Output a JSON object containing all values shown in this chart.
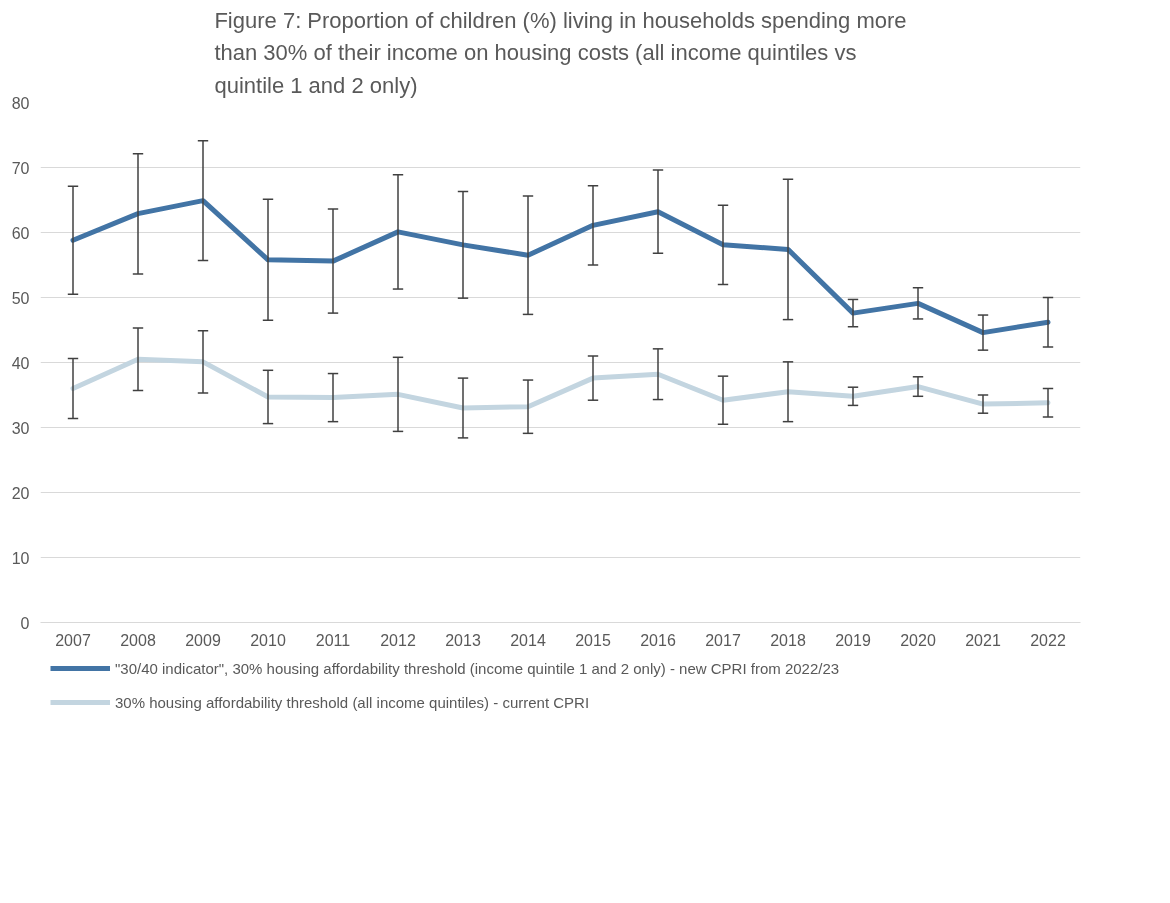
{
  "chart_data": {
    "type": "line",
    "title": "Figure 7: Proportion of children (%) living in households spending more than 30% of their income on housing costs (all income quintiles vs quintile 1 and 2 only)",
    "categories": [
      "2007",
      "2008",
      "2009",
      "2010",
      "2011",
      "2012",
      "2013",
      "2014",
      "2015",
      "2016",
      "2017",
      "2018",
      "2019",
      "2020",
      "2021",
      "2022"
    ],
    "series": [
      {
        "name": "\"30/40 indicator\", 30% housing affordability threshold (income quintile 1 and 2 only) - new CPRI from 2022/23",
        "color": "#4274a5",
        "values": [
          58.8,
          62.9,
          64.9,
          55.8,
          55.6,
          60.1,
          58.1,
          56.5,
          61.1,
          63.2,
          58.1,
          57.4,
          47.6,
          49.1,
          44.6,
          46.2
        ],
        "errors": [
          [
            50.5,
            67.1
          ],
          [
            53.6,
            72.1
          ],
          [
            55.7,
            74.1
          ],
          [
            46.5,
            65.1
          ],
          [
            47.6,
            63.6
          ],
          [
            51.3,
            68.9
          ],
          [
            49.9,
            66.3
          ],
          [
            47.4,
            65.6
          ],
          [
            55.0,
            67.2
          ],
          [
            56.8,
            69.6
          ],
          [
            52.0,
            64.2
          ],
          [
            46.6,
            68.2
          ],
          [
            45.5,
            49.7
          ],
          [
            46.7,
            51.5
          ],
          [
            41.9,
            47.3
          ],
          [
            42.4,
            50.0
          ]
        ]
      },
      {
        "name": "30% housing affordability threshold (all income quintiles) - current CPRI",
        "color": "#c3d5e0",
        "values": [
          36.0,
          40.5,
          40.1,
          34.7,
          34.6,
          35.1,
          33.0,
          33.2,
          37.6,
          38.2,
          34.2,
          35.5,
          34.8,
          36.3,
          33.6,
          33.8
        ],
        "errors": [
          [
            31.4,
            40.6
          ],
          [
            35.7,
            45.3
          ],
          [
            35.3,
            44.9
          ],
          [
            30.6,
            38.8
          ],
          [
            30.9,
            38.3
          ],
          [
            29.4,
            40.8
          ],
          [
            28.4,
            37.6
          ],
          [
            29.1,
            37.3
          ],
          [
            34.2,
            41.0
          ],
          [
            34.3,
            42.1
          ],
          [
            30.5,
            37.9
          ],
          [
            30.9,
            40.1
          ],
          [
            33.4,
            36.2
          ],
          [
            34.8,
            37.8
          ],
          [
            32.2,
            35.0
          ],
          [
            31.6,
            36.0
          ]
        ]
      }
    ],
    "ylim": [
      0,
      80
    ],
    "yticks": [
      0,
      10,
      20,
      30,
      40,
      50,
      60,
      70,
      80
    ],
    "grid": "y",
    "legend": "bottom",
    "marker": "none",
    "line_style": "solid"
  }
}
